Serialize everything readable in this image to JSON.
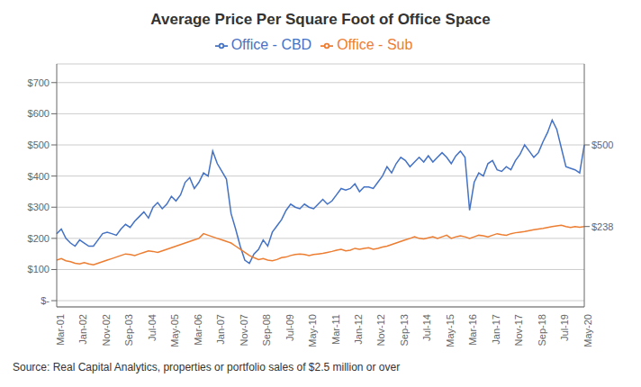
{
  "chart_data": {
    "type": "line",
    "title": "Average Price Per Square Foot of Office Space",
    "annotations": [
      "Source: Real Capital Analytics, properties or portfolio sales of $2.5 million or over"
    ],
    "categories": [
      "Mar-01",
      null,
      null,
      null,
      null,
      "Jan-02",
      null,
      null,
      null,
      null,
      "Nov-02",
      null,
      null,
      null,
      null,
      "Sep-03",
      null,
      null,
      null,
      null,
      "Jul-04",
      null,
      null,
      null,
      null,
      "May-05",
      null,
      null,
      null,
      null,
      "Mar-06",
      null,
      null,
      null,
      null,
      "Jan-07",
      null,
      null,
      null,
      null,
      "Nov-07",
      null,
      null,
      null,
      null,
      "Sep-08",
      null,
      null,
      null,
      null,
      "Jul-09",
      null,
      null,
      null,
      null,
      "May-10",
      null,
      null,
      null,
      null,
      "Mar-11",
      null,
      null,
      null,
      null,
      "Jan-12",
      null,
      null,
      null,
      null,
      "Nov-12",
      null,
      null,
      null,
      null,
      "Sep-13",
      null,
      null,
      null,
      null,
      "Jul-14",
      null,
      null,
      null,
      null,
      "May-15",
      null,
      null,
      null,
      null,
      "Mar-16",
      null,
      null,
      null,
      null,
      "Jan-17",
      null,
      null,
      null,
      null,
      "Nov-17",
      null,
      null,
      null,
      null,
      "Sep-18",
      null,
      null,
      null,
      null,
      "Jul-19",
      null,
      null,
      null,
      null,
      "May-20"
    ],
    "series": [
      {
        "name": "Office - CBD",
        "color": "#4472C4",
        "values": [
          215,
          230,
          200,
          185,
          175,
          195,
          185,
          175,
          175,
          195,
          215,
          220,
          215,
          210,
          230,
          245,
          235,
          255,
          270,
          285,
          265,
          300,
          315,
          295,
          310,
          335,
          320,
          340,
          380,
          395,
          360,
          380,
          410,
          400,
          480,
          440,
          415,
          390,
          280,
          230,
          175,
          130,
          120,
          150,
          165,
          195,
          175,
          220,
          240,
          260,
          290,
          310,
          300,
          295,
          310,
          300,
          295,
          310,
          325,
          310,
          320,
          340,
          360,
          355,
          360,
          375,
          350,
          365,
          365,
          360,
          380,
          400,
          430,
          410,
          440,
          460,
          450,
          430,
          445,
          460,
          445,
          465,
          445,
          460,
          475,
          460,
          440,
          465,
          480,
          460,
          290,
          380,
          410,
          400,
          440,
          450,
          420,
          415,
          430,
          420,
          450,
          470,
          500,
          480,
          460,
          475,
          510,
          540,
          580,
          550,
          490,
          430,
          425,
          420,
          410,
          500
        ]
      },
      {
        "name": "Office - Sub",
        "color": "#ED7D31",
        "values": [
          130,
          135,
          128,
          125,
          120,
          118,
          122,
          118,
          115,
          120,
          125,
          130,
          135,
          140,
          145,
          150,
          148,
          145,
          150,
          155,
          160,
          158,
          155,
          160,
          165,
          170,
          175,
          180,
          185,
          190,
          195,
          200,
          215,
          210,
          205,
          200,
          195,
          190,
          185,
          175,
          165,
          155,
          145,
          138,
          132,
          135,
          130,
          128,
          132,
          138,
          140,
          145,
          148,
          150,
          148,
          145,
          148,
          150,
          152,
          155,
          158,
          162,
          165,
          160,
          162,
          168,
          165,
          168,
          170,
          165,
          168,
          172,
          175,
          180,
          185,
          190,
          195,
          200,
          205,
          200,
          198,
          202,
          205,
          200,
          205,
          210,
          200,
          205,
          208,
          205,
          200,
          205,
          210,
          208,
          205,
          210,
          215,
          212,
          210,
          215,
          218,
          220,
          222,
          225,
          228,
          230,
          232,
          235,
          238,
          240,
          242,
          238,
          235,
          238,
          236,
          238
        ]
      }
    ],
    "ylim": [
      -20,
      760
    ],
    "yticks": [
      {
        "value": 0,
        "label": "$-"
      },
      {
        "value": 100,
        "label": "$100"
      },
      {
        "value": 200,
        "label": "$200"
      },
      {
        "value": 300,
        "label": "$300"
      },
      {
        "value": 400,
        "label": "$400"
      },
      {
        "value": 500,
        "label": "$500"
      },
      {
        "value": 600,
        "label": "$600"
      },
      {
        "value": 700,
        "label": "$700"
      }
    ],
    "y2lim": [
      -20,
      760
    ],
    "y2ticks": [
      {
        "value": 500,
        "label": "$500"
      },
      {
        "value": 238,
        "label": "$238"
      }
    ],
    "grid": true,
    "legend": "top"
  }
}
